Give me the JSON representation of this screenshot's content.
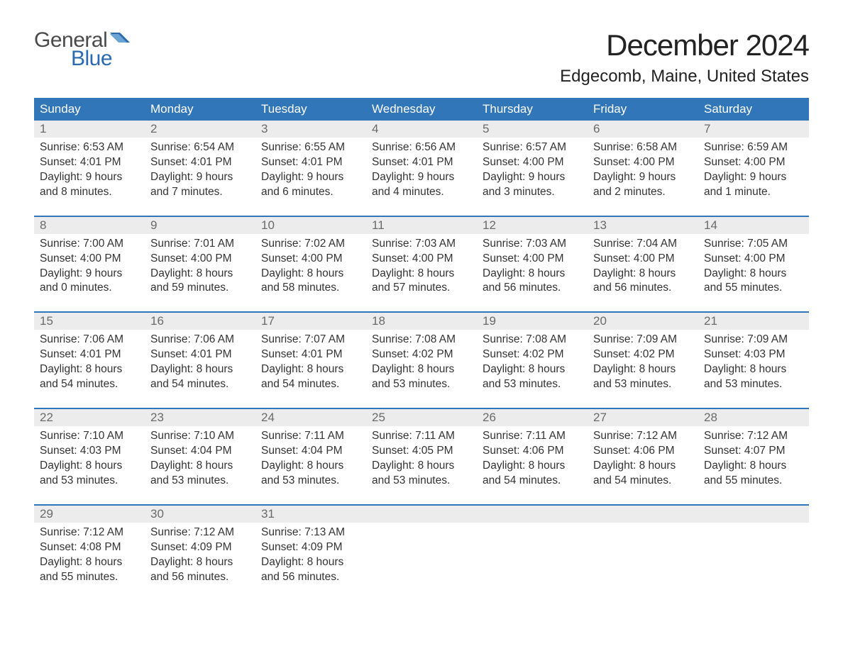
{
  "logo": {
    "word1": "General",
    "word2": "Blue",
    "text_color1": "#4a4a4a",
    "text_color2": "#2a6bb0",
    "flag_color": "#2a6bb0"
  },
  "title": "December 2024",
  "location": "Edgecomb, Maine, United States",
  "colors": {
    "header_bg": "#3076b8",
    "header_text": "#ffffff",
    "daynum_bg": "#ececec",
    "daynum_text": "#6a6a6a",
    "body_text": "#333333",
    "week_border": "#3076b8",
    "page_bg": "#ffffff"
  },
  "typography": {
    "title_fontsize": 42,
    "location_fontsize": 24,
    "weekday_fontsize": 17,
    "daynum_fontsize": 17,
    "body_fontsize": 15.5,
    "logo_fontsize": 30,
    "font_family": "Arial"
  },
  "layout": {
    "columns": 7,
    "rows": 5,
    "cell_padding": 8
  },
  "weekdays": [
    "Sunday",
    "Monday",
    "Tuesday",
    "Wednesday",
    "Thursday",
    "Friday",
    "Saturday"
  ],
  "days": [
    {
      "n": "1",
      "sr": "6:53 AM",
      "ss": "4:01 PM",
      "dh": "9",
      "dm": "8 minutes"
    },
    {
      "n": "2",
      "sr": "6:54 AM",
      "ss": "4:01 PM",
      "dh": "9",
      "dm": "7 minutes"
    },
    {
      "n": "3",
      "sr": "6:55 AM",
      "ss": "4:01 PM",
      "dh": "9",
      "dm": "6 minutes"
    },
    {
      "n": "4",
      "sr": "6:56 AM",
      "ss": "4:01 PM",
      "dh": "9",
      "dm": "4 minutes"
    },
    {
      "n": "5",
      "sr": "6:57 AM",
      "ss": "4:00 PM",
      "dh": "9",
      "dm": "3 minutes"
    },
    {
      "n": "6",
      "sr": "6:58 AM",
      "ss": "4:00 PM",
      "dh": "9",
      "dm": "2 minutes"
    },
    {
      "n": "7",
      "sr": "6:59 AM",
      "ss": "4:00 PM",
      "dh": "9",
      "dm": "1 minute"
    },
    {
      "n": "8",
      "sr": "7:00 AM",
      "ss": "4:00 PM",
      "dh": "9",
      "dm": "0 minutes"
    },
    {
      "n": "9",
      "sr": "7:01 AM",
      "ss": "4:00 PM",
      "dh": "8",
      "dm": "59 minutes"
    },
    {
      "n": "10",
      "sr": "7:02 AM",
      "ss": "4:00 PM",
      "dh": "8",
      "dm": "58 minutes"
    },
    {
      "n": "11",
      "sr": "7:03 AM",
      "ss": "4:00 PM",
      "dh": "8",
      "dm": "57 minutes"
    },
    {
      "n": "12",
      "sr": "7:03 AM",
      "ss": "4:00 PM",
      "dh": "8",
      "dm": "56 minutes"
    },
    {
      "n": "13",
      "sr": "7:04 AM",
      "ss": "4:00 PM",
      "dh": "8",
      "dm": "56 minutes"
    },
    {
      "n": "14",
      "sr": "7:05 AM",
      "ss": "4:00 PM",
      "dh": "8",
      "dm": "55 minutes"
    },
    {
      "n": "15",
      "sr": "7:06 AM",
      "ss": "4:01 PM",
      "dh": "8",
      "dm": "54 minutes"
    },
    {
      "n": "16",
      "sr": "7:06 AM",
      "ss": "4:01 PM",
      "dh": "8",
      "dm": "54 minutes"
    },
    {
      "n": "17",
      "sr": "7:07 AM",
      "ss": "4:01 PM",
      "dh": "8",
      "dm": "54 minutes"
    },
    {
      "n": "18",
      "sr": "7:08 AM",
      "ss": "4:02 PM",
      "dh": "8",
      "dm": "53 minutes"
    },
    {
      "n": "19",
      "sr": "7:08 AM",
      "ss": "4:02 PM",
      "dh": "8",
      "dm": "53 minutes"
    },
    {
      "n": "20",
      "sr": "7:09 AM",
      "ss": "4:02 PM",
      "dh": "8",
      "dm": "53 minutes"
    },
    {
      "n": "21",
      "sr": "7:09 AM",
      "ss": "4:03 PM",
      "dh": "8",
      "dm": "53 minutes"
    },
    {
      "n": "22",
      "sr": "7:10 AM",
      "ss": "4:03 PM",
      "dh": "8",
      "dm": "53 minutes"
    },
    {
      "n": "23",
      "sr": "7:10 AM",
      "ss": "4:04 PM",
      "dh": "8",
      "dm": "53 minutes"
    },
    {
      "n": "24",
      "sr": "7:11 AM",
      "ss": "4:04 PM",
      "dh": "8",
      "dm": "53 minutes"
    },
    {
      "n": "25",
      "sr": "7:11 AM",
      "ss": "4:05 PM",
      "dh": "8",
      "dm": "53 minutes"
    },
    {
      "n": "26",
      "sr": "7:11 AM",
      "ss": "4:06 PM",
      "dh": "8",
      "dm": "54 minutes"
    },
    {
      "n": "27",
      "sr": "7:12 AM",
      "ss": "4:06 PM",
      "dh": "8",
      "dm": "54 minutes"
    },
    {
      "n": "28",
      "sr": "7:12 AM",
      "ss": "4:07 PM",
      "dh": "8",
      "dm": "55 minutes"
    },
    {
      "n": "29",
      "sr": "7:12 AM",
      "ss": "4:08 PM",
      "dh": "8",
      "dm": "55 minutes"
    },
    {
      "n": "30",
      "sr": "7:12 AM",
      "ss": "4:09 PM",
      "dh": "8",
      "dm": "56 minutes"
    },
    {
      "n": "31",
      "sr": "7:13 AM",
      "ss": "4:09 PM",
      "dh": "8",
      "dm": "56 minutes"
    }
  ],
  "labels": {
    "sunrise_prefix": "Sunrise: ",
    "sunset_prefix": "Sunset: ",
    "daylight_prefix": "Daylight: ",
    "hours_word": " hours",
    "and_word": "and "
  }
}
